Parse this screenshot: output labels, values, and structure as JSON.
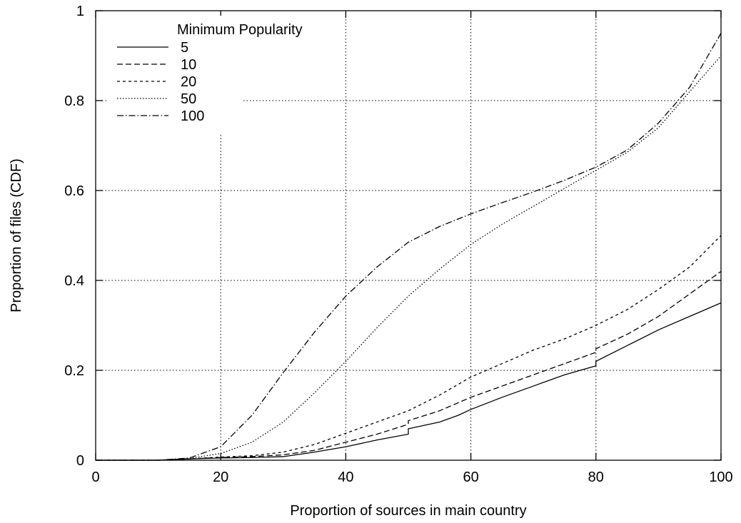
{
  "chart_data": {
    "type": "line",
    "title": "",
    "xlabel": "Proportion of sources in main country",
    "ylabel": "Proportion of files (CDF)",
    "xlim": [
      0,
      100
    ],
    "ylim": [
      0,
      1
    ],
    "x_ticks": [
      0,
      20,
      40,
      60,
      80,
      100
    ],
    "x_tick_labels": [
      "0",
      "20",
      "40",
      "60",
      "80",
      "100"
    ],
    "y_ticks": [
      0,
      0.2,
      0.4,
      0.6,
      0.8,
      1
    ],
    "y_tick_labels": [
      "0",
      "0.2",
      "0.4",
      "0.6",
      "0.8",
      "1"
    ],
    "grid": true,
    "legend": {
      "title": "Minimum Popularity",
      "placement": "top-left"
    },
    "series": [
      {
        "name": "5",
        "style": "solid",
        "points": [
          [
            0,
            0
          ],
          [
            10,
            0
          ],
          [
            15,
            0.003
          ],
          [
            20,
            0.005
          ],
          [
            25,
            0.006
          ],
          [
            30,
            0.008
          ],
          [
            35,
            0.018
          ],
          [
            40,
            0.03
          ],
          [
            45,
            0.045
          ],
          [
            50,
            0.058
          ],
          [
            50,
            0.07
          ],
          [
            55,
            0.085
          ],
          [
            58,
            0.1
          ],
          [
            60,
            0.113
          ],
          [
            65,
            0.14
          ],
          [
            70,
            0.165
          ],
          [
            75,
            0.19
          ],
          [
            80,
            0.21
          ],
          [
            80,
            0.22
          ],
          [
            85,
            0.255
          ],
          [
            90,
            0.29
          ],
          [
            95,
            0.32
          ],
          [
            100,
            0.35
          ]
        ]
      },
      {
        "name": "10",
        "style": "dashed",
        "points": [
          [
            0,
            0
          ],
          [
            10,
            0
          ],
          [
            15,
            0.003
          ],
          [
            20,
            0.006
          ],
          [
            25,
            0.008
          ],
          [
            30,
            0.012
          ],
          [
            35,
            0.022
          ],
          [
            40,
            0.04
          ],
          [
            45,
            0.058
          ],
          [
            50,
            0.08
          ],
          [
            50,
            0.088
          ],
          [
            55,
            0.11
          ],
          [
            60,
            0.14
          ],
          [
            65,
            0.165
          ],
          [
            70,
            0.19
          ],
          [
            75,
            0.215
          ],
          [
            80,
            0.24
          ],
          [
            80,
            0.248
          ],
          [
            85,
            0.28
          ],
          [
            90,
            0.32
          ],
          [
            95,
            0.37
          ],
          [
            100,
            0.42
          ]
        ]
      },
      {
        "name": "20",
        "style": "short-dashed",
        "points": [
          [
            0,
            0
          ],
          [
            10,
            0
          ],
          [
            15,
            0.003
          ],
          [
            20,
            0.007
          ],
          [
            25,
            0.01
          ],
          [
            30,
            0.018
          ],
          [
            35,
            0.035
          ],
          [
            40,
            0.06
          ],
          [
            45,
            0.085
          ],
          [
            50,
            0.11
          ],
          [
            55,
            0.145
          ],
          [
            60,
            0.185
          ],
          [
            65,
            0.215
          ],
          [
            70,
            0.245
          ],
          [
            75,
            0.27
          ],
          [
            80,
            0.3
          ],
          [
            85,
            0.335
          ],
          [
            90,
            0.38
          ],
          [
            95,
            0.43
          ],
          [
            100,
            0.5
          ]
        ]
      },
      {
        "name": "50",
        "style": "dotted",
        "points": [
          [
            0,
            0
          ],
          [
            10,
            0
          ],
          [
            15,
            0.004
          ],
          [
            20,
            0.015
          ],
          [
            25,
            0.04
          ],
          [
            30,
            0.085
          ],
          [
            35,
            0.15
          ],
          [
            40,
            0.22
          ],
          [
            45,
            0.295
          ],
          [
            50,
            0.365
          ],
          [
            55,
            0.425
          ],
          [
            60,
            0.48
          ],
          [
            65,
            0.525
          ],
          [
            70,
            0.565
          ],
          [
            75,
            0.605
          ],
          [
            80,
            0.645
          ],
          [
            85,
            0.685
          ],
          [
            90,
            0.74
          ],
          [
            95,
            0.82
          ],
          [
            100,
            0.9
          ]
        ]
      },
      {
        "name": "100",
        "style": "dash-dot",
        "points": [
          [
            0,
            0
          ],
          [
            10,
            0
          ],
          [
            15,
            0.005
          ],
          [
            20,
            0.03
          ],
          [
            25,
            0.1
          ],
          [
            30,
            0.195
          ],
          [
            35,
            0.285
          ],
          [
            40,
            0.365
          ],
          [
            45,
            0.43
          ],
          [
            50,
            0.485
          ],
          [
            55,
            0.52
          ],
          [
            60,
            0.548
          ],
          [
            65,
            0.573
          ],
          [
            70,
            0.597
          ],
          [
            75,
            0.623
          ],
          [
            80,
            0.652
          ],
          [
            85,
            0.69
          ],
          [
            90,
            0.75
          ],
          [
            95,
            0.83
          ],
          [
            100,
            0.95
          ]
        ]
      }
    ]
  }
}
